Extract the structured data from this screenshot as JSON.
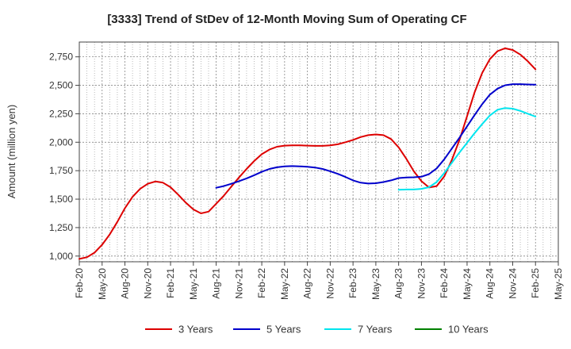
{
  "chart_data": {
    "type": "line",
    "title": "[3333]  Trend of StDev of 12-Month Moving Sum of Operating CF",
    "xlabel": "",
    "ylabel": "Amount (million yen)",
    "ylim": [
      950,
      2880
    ],
    "yticks": [
      1000,
      1250,
      1500,
      1750,
      2000,
      2250,
      2500,
      2750
    ],
    "ytick_labels": [
      "1,000",
      "1,250",
      "1,500",
      "1,750",
      "2,000",
      "2,250",
      "2,500",
      "2,750"
    ],
    "xlim": [
      0,
      63
    ],
    "xticks": [
      0,
      3,
      6,
      9,
      12,
      15,
      18,
      21,
      24,
      27,
      30,
      33,
      36,
      39,
      42,
      45,
      48,
      51,
      54,
      57,
      60,
      63
    ],
    "xtick_labels": [
      "Feb-20",
      "May-20",
      "Aug-20",
      "Nov-20",
      "Feb-21",
      "May-21",
      "Aug-21",
      "Nov-21",
      "Feb-22",
      "May-22",
      "Aug-22",
      "Nov-22",
      "Feb-23",
      "May-23",
      "Aug-23",
      "Nov-23",
      "Feb-24",
      "May-24",
      "Aug-24",
      "Nov-24",
      "Feb-25",
      "May-25"
    ],
    "grid": true,
    "legend_position": "bottom",
    "series": [
      {
        "name": "3 Years",
        "color": "#dd0000",
        "x": [
          0,
          1,
          2,
          3,
          4,
          5,
          6,
          7,
          8,
          9,
          10,
          11,
          12,
          13,
          14,
          15,
          16,
          17,
          18,
          19,
          20,
          21,
          22,
          23,
          24,
          25,
          26,
          27,
          28,
          29,
          30,
          31,
          32,
          33,
          34,
          35,
          36,
          37,
          38,
          39,
          40,
          41,
          42,
          43,
          44,
          45,
          46,
          47,
          48,
          49,
          50,
          51,
          52,
          53,
          54,
          55,
          56,
          57,
          58,
          59,
          60
        ],
        "values": [
          975,
          990,
          1030,
          1100,
          1190,
          1300,
          1420,
          1520,
          1590,
          1635,
          1655,
          1645,
          1605,
          1540,
          1470,
          1410,
          1375,
          1390,
          1460,
          1530,
          1610,
          1690,
          1765,
          1835,
          1895,
          1935,
          1960,
          1970,
          1972,
          1972,
          1970,
          1968,
          1968,
          1972,
          1982,
          2000,
          2020,
          2045,
          2062,
          2068,
          2062,
          2028,
          1955,
          1855,
          1745,
          1658,
          1602,
          1615,
          1700,
          1845,
          2020,
          2230,
          2440,
          2610,
          2730,
          2800,
          2825,
          2810,
          2770,
          2710,
          2640
        ]
      },
      {
        "name": "5 Years",
        "color": "#0000cc",
        "x": [
          18,
          19,
          20,
          21,
          22,
          23,
          24,
          25,
          26,
          27,
          28,
          29,
          30,
          31,
          32,
          33,
          34,
          35,
          36,
          37,
          38,
          39,
          40,
          41,
          42,
          43,
          44,
          45,
          46,
          47,
          48,
          49,
          50,
          51,
          52,
          53,
          54,
          55,
          56,
          57,
          58,
          59,
          60
        ],
        "values": [
          1600,
          1615,
          1635,
          1658,
          1682,
          1710,
          1740,
          1765,
          1780,
          1788,
          1790,
          1788,
          1785,
          1778,
          1765,
          1745,
          1722,
          1695,
          1665,
          1645,
          1637,
          1640,
          1650,
          1665,
          1685,
          1690,
          1692,
          1697,
          1720,
          1770,
          1850,
          1945,
          2040,
          2140,
          2240,
          2335,
          2418,
          2470,
          2500,
          2510,
          2510,
          2507,
          2505
        ]
      },
      {
        "name": "7 Years",
        "color": "#00e5ee",
        "x": [
          42,
          43,
          44,
          45,
          46,
          47,
          48,
          49,
          50,
          51,
          52,
          53,
          54,
          55,
          56,
          57,
          58,
          59,
          60
        ],
        "values": [
          1582,
          1585,
          1585,
          1590,
          1605,
          1650,
          1730,
          1820,
          1910,
          1995,
          2080,
          2160,
          2235,
          2285,
          2300,
          2295,
          2275,
          2250,
          2225
        ]
      },
      {
        "name": "10 Years",
        "color": "#008000",
        "x": [],
        "values": []
      }
    ]
  }
}
